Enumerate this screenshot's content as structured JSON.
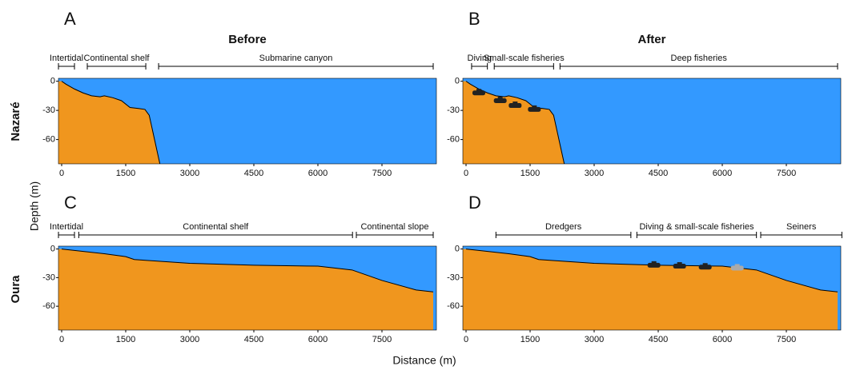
{
  "figure": {
    "columns": [
      "Before",
      "After"
    ],
    "rows": [
      "Nazaré",
      "Oura"
    ],
    "ylabel": "Depth (m)",
    "xlabel": "Distance (m)"
  },
  "chart_data": [
    {
      "type": "profile",
      "letter": "A",
      "xlim": [
        -75,
        8775
      ],
      "ylim": [
        -85,
        3
      ],
      "xticks": [
        0,
        1500,
        3000,
        4500,
        6000,
        7500
      ],
      "yticks": [
        0,
        -30,
        -60
      ],
      "water_color": "#3399ff",
      "land_color": "#f0961e",
      "x": [
        0,
        100,
        300,
        500,
        700,
        900,
        1000,
        1200,
        1400,
        1600,
        1800,
        1950,
        2050,
        2150,
        2250,
        2300
      ],
      "y": [
        0,
        -3,
        -8,
        -12,
        -15,
        -16,
        -15,
        -17,
        -20,
        -27,
        -28,
        -29,
        -35,
        -55,
        -75,
        -85
      ],
      "segments": [
        {
          "label": "Intertidal",
          "start": -75,
          "end": 300
        },
        {
          "label": "Continental shelf",
          "start": 600,
          "end": 1970
        },
        {
          "label": "Submarine canyon",
          "start": 2270,
          "end": 8700
        }
      ],
      "boats": []
    },
    {
      "type": "profile",
      "letter": "B",
      "xlim": [
        -75,
        8775
      ],
      "ylim": [
        -85,
        3
      ],
      "xticks": [
        0,
        1500,
        3000,
        4500,
        6000,
        7500
      ],
      "yticks": [
        0,
        -30,
        -60
      ],
      "water_color": "#3399ff",
      "land_color": "#f0961e",
      "x": [
        0,
        100,
        300,
        500,
        700,
        900,
        1000,
        1200,
        1400,
        1600,
        1800,
        1950,
        2050,
        2150,
        2250,
        2300
      ],
      "y": [
        0,
        -3,
        -8,
        -12,
        -15,
        -16,
        -15,
        -17,
        -20,
        -27,
        -28,
        -29,
        -35,
        -55,
        -75,
        -85
      ],
      "segments": [
        {
          "label": "Diving",
          "start": 130,
          "end": 500
        },
        {
          "label": "Small-scale fisheries",
          "start": 660,
          "end": 2050
        },
        {
          "label": "Deep fisheries",
          "start": 2200,
          "end": 8700
        }
      ],
      "boats": [
        {
          "x": 300,
          "y": -12,
          "color": "#222222"
        },
        {
          "x": 800,
          "y": -20,
          "color": "#222222"
        },
        {
          "x": 1150,
          "y": -25,
          "color": "#222222"
        },
        {
          "x": 1600,
          "y": -29,
          "color": "#222222"
        }
      ]
    },
    {
      "type": "profile",
      "letter": "C",
      "xlim": [
        -75,
        8775
      ],
      "ylim": [
        -85,
        3
      ],
      "xticks": [
        0,
        1500,
        3000,
        4500,
        6000,
        7500
      ],
      "yticks": [
        0,
        -30,
        -60
      ],
      "water_color": "#3399ff",
      "land_color": "#f0961e",
      "x": [
        0,
        1000,
        1500,
        1700,
        2000,
        3000,
        4500,
        6000,
        6800,
        7500,
        8300,
        8700
      ],
      "y": [
        0,
        -5,
        -8,
        -11,
        -12,
        -15,
        -17,
        -18,
        -22,
        -33,
        -43,
        -45
      ],
      "segments": [
        {
          "label": "Intertidal",
          "start": -75,
          "end": 300
        },
        {
          "label": "Continental shelf",
          "start": 400,
          "end": 6810
        },
        {
          "label": "Continental slope",
          "start": 6900,
          "end": 8700
        }
      ],
      "boats": []
    },
    {
      "type": "profile",
      "letter": "D",
      "xlim": [
        -75,
        8775
      ],
      "ylim": [
        -85,
        3
      ],
      "xticks": [
        0,
        1500,
        3000,
        4500,
        6000,
        7500
      ],
      "yticks": [
        0,
        -30,
        -60
      ],
      "water_color": "#3399ff",
      "land_color": "#f0961e",
      "x": [
        0,
        1000,
        1500,
        1700,
        2000,
        3000,
        4500,
        6000,
        6800,
        7500,
        8300,
        8700
      ],
      "y": [
        0,
        -5,
        -8,
        -11,
        -12,
        -15,
        -17,
        -18,
        -22,
        -33,
        -43,
        -45
      ],
      "segments": [
        {
          "label": "Dredgers",
          "start": 700,
          "end": 3860
        },
        {
          "label": "Diving & small-scale fisheries",
          "start": 4000,
          "end": 6800
        },
        {
          "label": "Seiners",
          "start": 6900,
          "end": 8800
        }
      ],
      "boats": [
        {
          "x": 4400,
          "y": -17,
          "color": "#222222"
        },
        {
          "x": 5000,
          "y": -18,
          "color": "#222222"
        },
        {
          "x": 5600,
          "y": -19,
          "color": "#222222"
        },
        {
          "x": 6350,
          "y": -20,
          "color": "#aaaaaa"
        }
      ]
    }
  ]
}
